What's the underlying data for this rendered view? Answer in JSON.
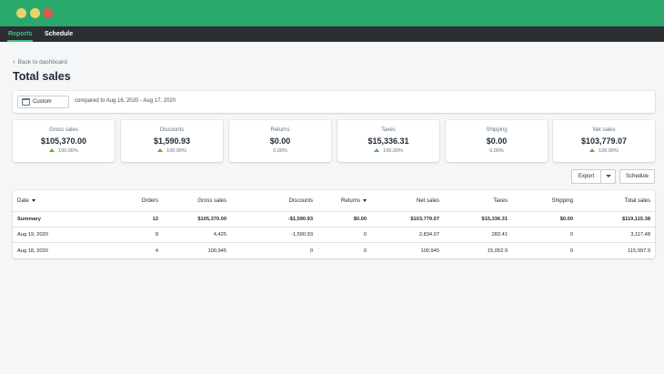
{
  "window": {
    "dot_colors": [
      "#e8d36a",
      "#e8d36a",
      "#e0574b"
    ],
    "accent": "#28a96b"
  },
  "nav": {
    "tabs": [
      {
        "label": "Reports",
        "active": true
      },
      {
        "label": "Schedule",
        "active": false
      }
    ]
  },
  "back_link": "Back to dashboard",
  "page_title": "Total sales",
  "date_range": {
    "button_label": "Custom",
    "compare_text": "compared to Aug 16, 2020 - Aug 17, 2020"
  },
  "metrics": [
    {
      "label": "Gross sales",
      "value": "$105,370.00",
      "change": "100.00%",
      "trend": "up"
    },
    {
      "label": "Discounts",
      "value": "$1,590.93",
      "change": "100.00%",
      "trend": "up"
    },
    {
      "label": "Returns",
      "value": "$0.00",
      "change": "0.00%",
      "trend": "none"
    },
    {
      "label": "Taxes",
      "value": "$15,336.31",
      "change": "100.00%",
      "trend": "up"
    },
    {
      "label": "Shipping",
      "value": "$0.00",
      "change": "0.00%",
      "trend": "none"
    },
    {
      "label": "Net sales",
      "value": "$103,779.07",
      "change": "100.00%",
      "trend": "up"
    }
  ],
  "actions": {
    "export_label": "Export",
    "schedule_label": "Schedule"
  },
  "table": {
    "headers": [
      "Date",
      "Orders",
      "Gross sales",
      "Discounts",
      "Returns",
      "Net sales",
      "Taxes",
      "Shipping",
      "Total sales"
    ],
    "summary": [
      "Summary",
      "12",
      "$105,370.00",
      "-$1,590.93",
      "$0.00",
      "$103,779.07",
      "$15,336.31",
      "$0.00",
      "$119,115.38"
    ],
    "rows": [
      [
        "Aug 19, 2020",
        "8",
        "4,425",
        "-1,590.93",
        "0",
        "2,834.07",
        "283.41",
        "0",
        "3,117.48"
      ],
      [
        "Aug 18, 2020",
        "4",
        "100,945",
        "0",
        "0",
        "100,945",
        "15,052.9",
        "0",
        "115,997.9"
      ]
    ]
  }
}
